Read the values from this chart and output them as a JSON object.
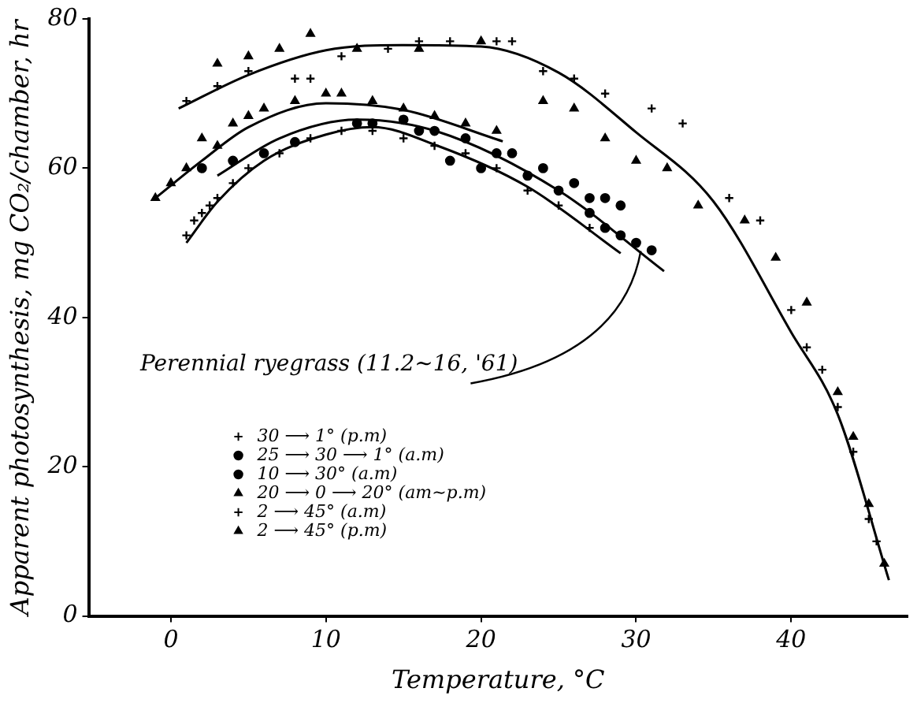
{
  "chart_data": {
    "type": "scatter",
    "xlabel": "Temperature, °C",
    "ylabel": "Apparent photosynthesis, mg CO₂/chamber, hr",
    "xlim": [
      -5.3,
      47.5
    ],
    "ylim": [
      0,
      80
    ],
    "xticks": [
      0,
      10,
      20,
      30,
      40
    ],
    "yticks": [
      0,
      20,
      40,
      60,
      80
    ],
    "grid": false,
    "legend": "left",
    "annotations": [
      {
        "text": "Perennial ryegrass (11.2~16, '61)",
        "x": 30.3,
        "y": 48.9
      }
    ],
    "series": [
      {
        "name": "30 ⟶ 1° (p.m)",
        "color": "#000000",
        "marker": "cross",
        "x": [
          1,
          1.5,
          2,
          2.5,
          3,
          4,
          5,
          7,
          9,
          11,
          13,
          15,
          17,
          19,
          21,
          23,
          25,
          27
        ],
        "values": [
          51,
          53,
          54,
          55,
          56,
          58,
          60,
          62,
          64,
          65,
          65,
          64,
          63,
          62,
          60,
          57,
          55,
          52
        ]
      },
      {
        "name": "25 ⟶ 30 ⟶ 1° (a.m)",
        "color": "#000000",
        "marker": "circle",
        "x": [
          2,
          4,
          6,
          8,
          12,
          16,
          18,
          20,
          22,
          24,
          26,
          27,
          28,
          29
        ],
        "values": [
          60,
          61,
          62,
          63.5,
          66,
          65,
          61,
          60,
          62,
          60,
          58,
          56,
          56,
          55
        ]
      },
      {
        "name": "10 ⟶ 30° (a.m)",
        "color": "#000000",
        "marker": "circle",
        "x": [
          13,
          15,
          17,
          19,
          21,
          23,
          25,
          27,
          28,
          29,
          30,
          31
        ],
        "values": [
          66,
          66.5,
          65,
          64,
          62,
          59,
          57,
          54,
          52,
          51,
          50,
          49
        ]
      },
      {
        "name": "20 ⟶ 0 ⟶ 20° (am~p.m)",
        "color": "#000000",
        "marker": "triangle",
        "x": [
          -1,
          0,
          1,
          2,
          3,
          4,
          5,
          6,
          8,
          10,
          11,
          13,
          15,
          17,
          19,
          21
        ],
        "values": [
          56,
          58,
          60,
          64,
          63,
          66,
          67,
          68,
          69,
          70,
          70,
          69,
          68,
          67,
          66,
          65
        ]
      },
      {
        "name": "2 ⟶ 45° (a.m)",
        "color": "#000000",
        "marker": "cross",
        "x": [
          1,
          3,
          5,
          8,
          9,
          11,
          14,
          16,
          18,
          21,
          22,
          24,
          26,
          28,
          31,
          33,
          36,
          38,
          40,
          41,
          42,
          43,
          44,
          45,
          45.5
        ],
        "values": [
          69,
          71,
          73,
          72,
          72,
          75,
          76,
          77,
          77,
          77,
          77,
          73,
          72,
          70,
          68,
          66,
          56,
          53,
          41,
          36,
          33,
          28,
          22,
          13,
          10
        ]
      },
      {
        "name": "2 ⟶ 45° (p.m)",
        "color": "#000000",
        "marker": "triangle",
        "x": [
          3,
          5,
          7,
          9,
          12,
          16,
          20,
          24,
          26,
          28,
          30,
          32,
          34,
          37,
          39,
          41,
          43,
          44,
          45,
          46
        ],
        "values": [
          74,
          75,
          76,
          78,
          76,
          76,
          77,
          69,
          68,
          64,
          61,
          60,
          55,
          53,
          48,
          42,
          30,
          24,
          15,
          7
        ]
      },
      {
        "type": "line",
        "color": "#000000",
        "marker": "none",
        "x": [
          0.5,
          5,
          10,
          15,
          20,
          25,
          30,
          35,
          40,
          43,
          46.3
        ],
        "values": [
          68,
          72.5,
          75.8,
          76.5,
          76.3,
          72.8,
          64.8,
          55.5,
          38,
          27,
          4.8
        ]
      },
      {
        "type": "line",
        "color": "#000000",
        "marker": "none",
        "x": [
          -1,
          2,
          5,
          10,
          15,
          21.4
        ],
        "values": [
          56,
          61,
          65.5,
          68.7,
          67.8,
          63.6
        ]
      },
      {
        "type": "line",
        "color": "#000000",
        "marker": "none",
        "x": [
          3,
          7,
          12,
          17.2,
          25,
          31.8
        ],
        "values": [
          59,
          64,
          66.5,
          64.9,
          57,
          46.2
        ]
      },
      {
        "type": "line",
        "color": "#000000",
        "marker": "none",
        "x": [
          1,
          3,
          6,
          10,
          13,
          17.2,
          23,
          29
        ],
        "values": [
          50,
          55.5,
          61,
          64.5,
          65.5,
          63,
          57.5,
          48.6
        ]
      }
    ]
  }
}
